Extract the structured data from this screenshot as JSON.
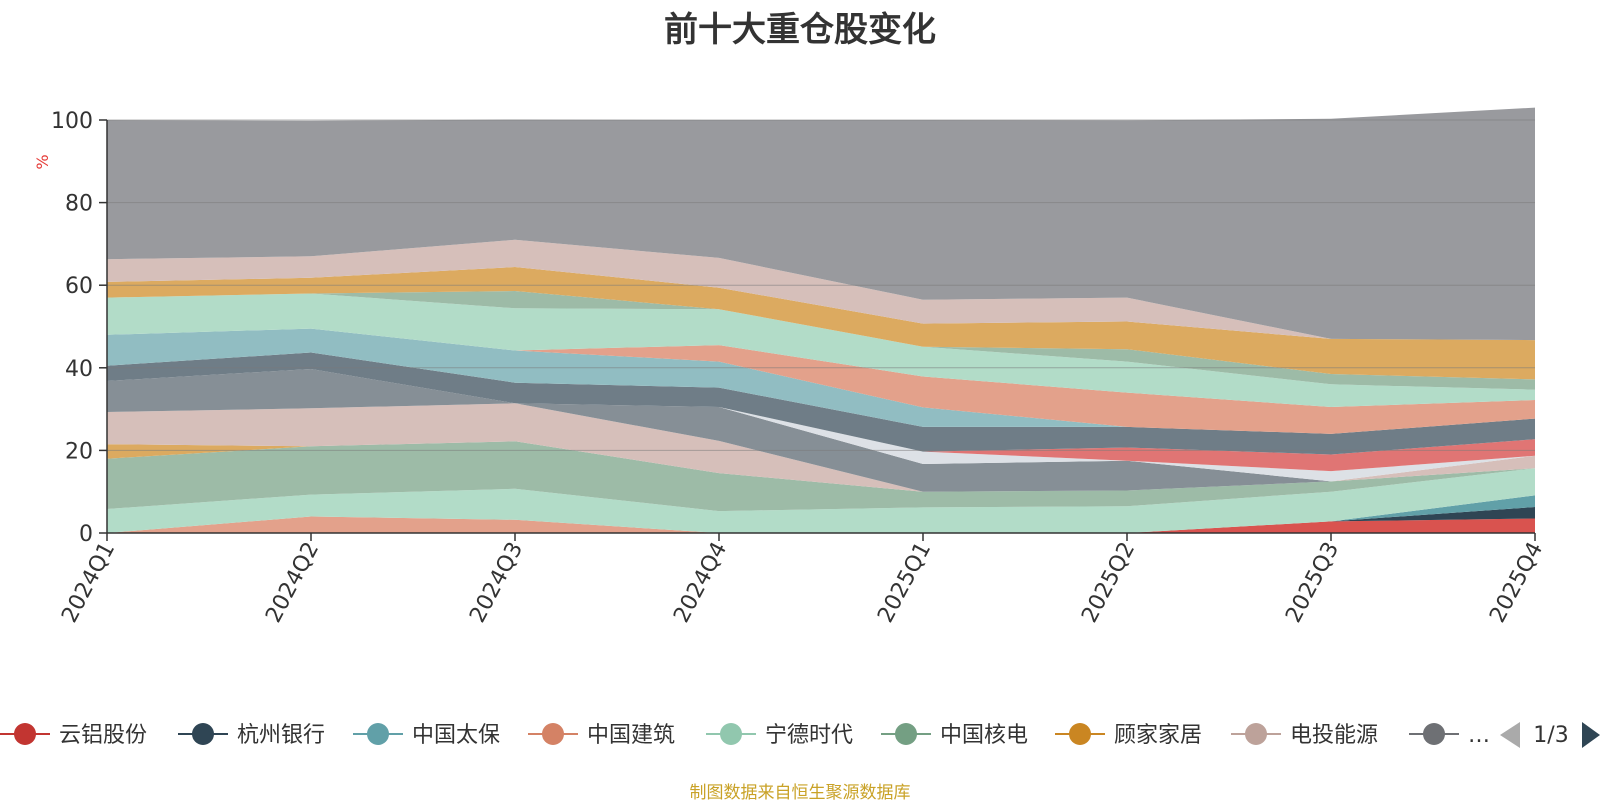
{
  "footer": {
    "source_note": "制图数据来自恒生聚源数据库"
  },
  "legend": {
    "page_indicator": "1/3",
    "items": [
      {
        "label": "云铝股份",
        "color": "#c23531"
      },
      {
        "label": "杭州银行",
        "color": "#2f4554"
      },
      {
        "label": "中国太保",
        "color": "#61a0a8"
      },
      {
        "label": "中国建筑",
        "color": "#d48265"
      },
      {
        "label": "宁德时代",
        "color": "#91c7ae"
      },
      {
        "label": "中国核电",
        "color": "#749f83"
      },
      {
        "label": "顾家家居",
        "color": "#ca8622"
      },
      {
        "label": "电投能源",
        "color": "#bda29a"
      },
      {
        "label": "…",
        "color": "#6e7074"
      }
    ]
  },
  "chart_data": {
    "type": "area",
    "stacked": true,
    "title": "前十大重仓股变化",
    "ylabel": "%",
    "ylim": [
      0,
      100
    ],
    "yticks": [
      0,
      20,
      40,
      60,
      80,
      100
    ],
    "grid": true,
    "legend_position": "bottom",
    "categories": [
      "2024Q1",
      "2024Q2",
      "2024Q3",
      "2024Q4",
      "2025Q1",
      "2025Q2",
      "2025Q3",
      "2025Q4"
    ],
    "series": [
      {
        "name": "云铝股份",
        "color": "#d9534f",
        "values": [
          0,
          0,
          0,
          0,
          0,
          0,
          2.8,
          3.5
        ]
      },
      {
        "name": "杭州银行",
        "color": "#2f4554",
        "values": [
          0,
          0,
          0,
          0,
          0,
          0,
          0,
          2.8
        ]
      },
      {
        "name": "中国太保",
        "color": "#61a0a8",
        "values": [
          0,
          0,
          0,
          0,
          0,
          0,
          0,
          2.8
        ]
      },
      {
        "name": "中国建筑",
        "color": "#e3a18b",
        "values": [
          0,
          4,
          3.2,
          0,
          0,
          0,
          0,
          0
        ]
      },
      {
        "name": "宁德时代",
        "color": "#b2dcc8",
        "values": [
          5.8,
          5.3,
          7.5,
          5.3,
          6.2,
          6.5,
          7.2,
          6.6
        ]
      },
      {
        "name": "中国核电",
        "color": "#9dbba7",
        "values": [
          12.2,
          11.7,
          11.5,
          9.2,
          3.8,
          3.8,
          2.5,
          0
        ]
      },
      {
        "name": "顾家家居",
        "color": "#dcaa60",
        "values": [
          3.5,
          0,
          0,
          0,
          0,
          0,
          0,
          0
        ]
      },
      {
        "name": "电投能源",
        "color": "#d6bfba",
        "values": [
          7.8,
          9.2,
          9.2,
          7.8,
          0,
          0,
          0,
          3
        ]
      },
      {
        "name": "",
        "color": "#868f96",
        "values": [
          7.5,
          9.5,
          0,
          8.2,
          6.7,
          7.2,
          0,
          0
        ]
      },
      {
        "name": "",
        "color": "#dde1e6",
        "values": [
          0,
          0,
          0,
          0,
          3.0,
          0,
          2.5,
          0
        ]
      },
      {
        "name": "",
        "color": "#e07574",
        "values": [
          0,
          0,
          0,
          0,
          0,
          3.2,
          4,
          4
        ]
      },
      {
        "name": "",
        "color": "#6f7d87",
        "values": [
          3.7,
          4,
          5,
          4.7,
          6,
          5,
          5,
          5
        ]
      },
      {
        "name": "",
        "color": "#91bdc2",
        "values": [
          7.5,
          5.8,
          7.8,
          6.3,
          4.7,
          0,
          0,
          0
        ]
      },
      {
        "name": "",
        "color": "#e3a18b",
        "values": [
          0,
          0,
          0,
          4,
          7.5,
          8.3,
          6.5,
          4.5
        ]
      },
      {
        "name": "",
        "color": "#b2dcc8",
        "values": [
          9,
          8.5,
          10.2,
          8.7,
          7.2,
          7.5,
          5.5,
          2.5
        ]
      },
      {
        "name": "",
        "color": "#9dbba7",
        "values": [
          0,
          0,
          4.2,
          0,
          0,
          3,
          2.5,
          2.5
        ]
      },
      {
        "name": "",
        "color": "#dcaa60",
        "values": [
          3.8,
          3.8,
          5.8,
          5.2,
          5.6,
          6.7,
          8.5,
          9.5
        ]
      },
      {
        "name": "",
        "color": "#d6bfba",
        "values": [
          5.5,
          5.2,
          6.6,
          7.2,
          5.8,
          5.8,
          0,
          0
        ]
      },
      {
        "name": "",
        "color": "#999a9e",
        "values": [
          33.7,
          32.8,
          29.1,
          33.4,
          43.5,
          42.9,
          53.3,
          56.3
        ]
      }
    ]
  }
}
